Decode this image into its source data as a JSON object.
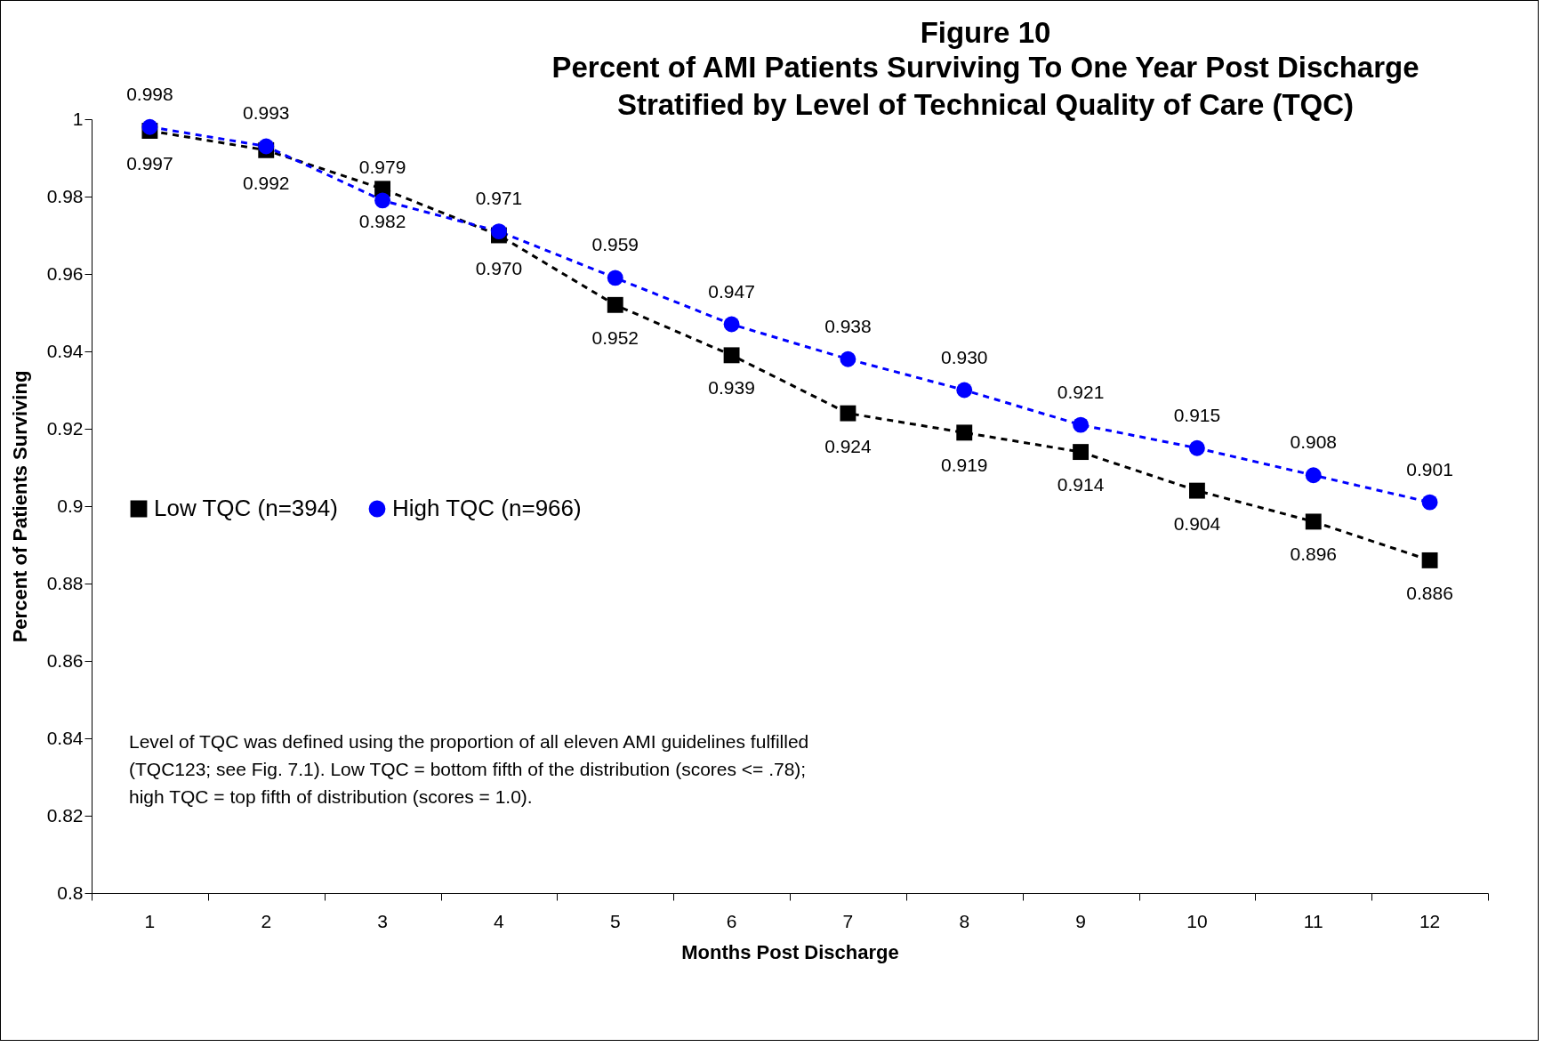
{
  "chart_data": {
    "type": "line",
    "title": "Figure 10",
    "subtitle": "Percent of AMI Patients Surviving To One Year Post Discharge\nStratified by Level of Technical Quality of Care (TQC)",
    "xlabel": "Months Post Discharge",
    "ylabel": "Percent of Patients Surviving",
    "categories": [
      "1",
      "2",
      "3",
      "4",
      "5",
      "6",
      "7",
      "8",
      "9",
      "10",
      "11",
      "12"
    ],
    "series": [
      {
        "name": "Low TQC (n=394)",
        "color": "#000000",
        "marker": "square",
        "values": [
          0.997,
          0.992,
          0.982,
          0.97,
          0.952,
          0.939,
          0.924,
          0.919,
          0.914,
          0.904,
          0.896,
          0.886
        ],
        "value_labels": [
          "0.997",
          "0.992",
          "0.982",
          "0.970",
          "0.952",
          "0.939",
          "0.924",
          "0.919",
          "0.914",
          "0.904",
          "0.896",
          "0.886"
        ]
      },
      {
        "name": "High TQC (n=966)",
        "color": "#0000ff",
        "marker": "circle",
        "values": [
          0.998,
          0.993,
          0.979,
          0.971,
          0.959,
          0.947,
          0.938,
          0.93,
          0.921,
          0.915,
          0.908,
          0.901
        ],
        "value_labels": [
          "0.998",
          "0.993",
          "0.979",
          "0.971",
          "0.959",
          "0.947",
          "0.938",
          "0.930",
          "0.921",
          "0.915",
          "0.908",
          "0.901"
        ]
      }
    ],
    "ylim": [
      0.8,
      1
    ],
    "yticks": [
      0.8,
      0.82,
      0.84,
      0.86,
      0.88,
      0.9,
      0.92,
      0.94,
      0.96,
      0.98,
      1
    ],
    "line_style": "dashed",
    "legend": "left",
    "grid": false,
    "annotations": [
      "Level of TQC was defined using the proportion of all eleven AMI guidelines fulfilled\n(TQC123; see Fig. 7.1).  Low TQC = bottom fifth of the distribution (scores <= .78);\nhigh TQC = top fifth of distribution (scores = 1.0)."
    ]
  }
}
